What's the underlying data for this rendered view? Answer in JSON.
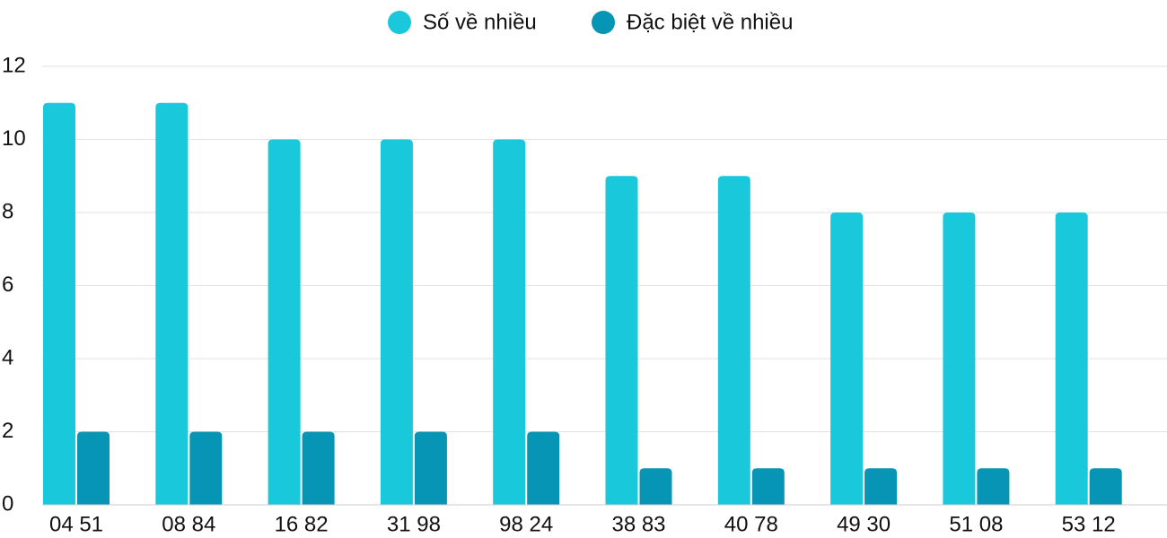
{
  "chart_data": {
    "type": "bar",
    "categories": [
      "04 51",
      "08 84",
      "16 82",
      "31 98",
      "98 24",
      "38 83",
      "40 78",
      "49 30",
      "51 08",
      "53 12"
    ],
    "series": [
      {
        "name": "Số về nhiều",
        "color": "#1ac8db",
        "values": [
          11,
          11,
          10,
          10,
          10,
          9,
          9,
          8,
          8,
          8
        ]
      },
      {
        "name": "Đặc biệt về nhiều",
        "color": "#0795b5",
        "values": [
          2,
          2,
          2,
          2,
          2,
          1,
          1,
          1,
          1,
          1
        ]
      }
    ],
    "ylim": [
      0,
      12
    ],
    "yticks": [
      0,
      2,
      4,
      6,
      8,
      10,
      12
    ],
    "grid": true,
    "legend": "top"
  }
}
